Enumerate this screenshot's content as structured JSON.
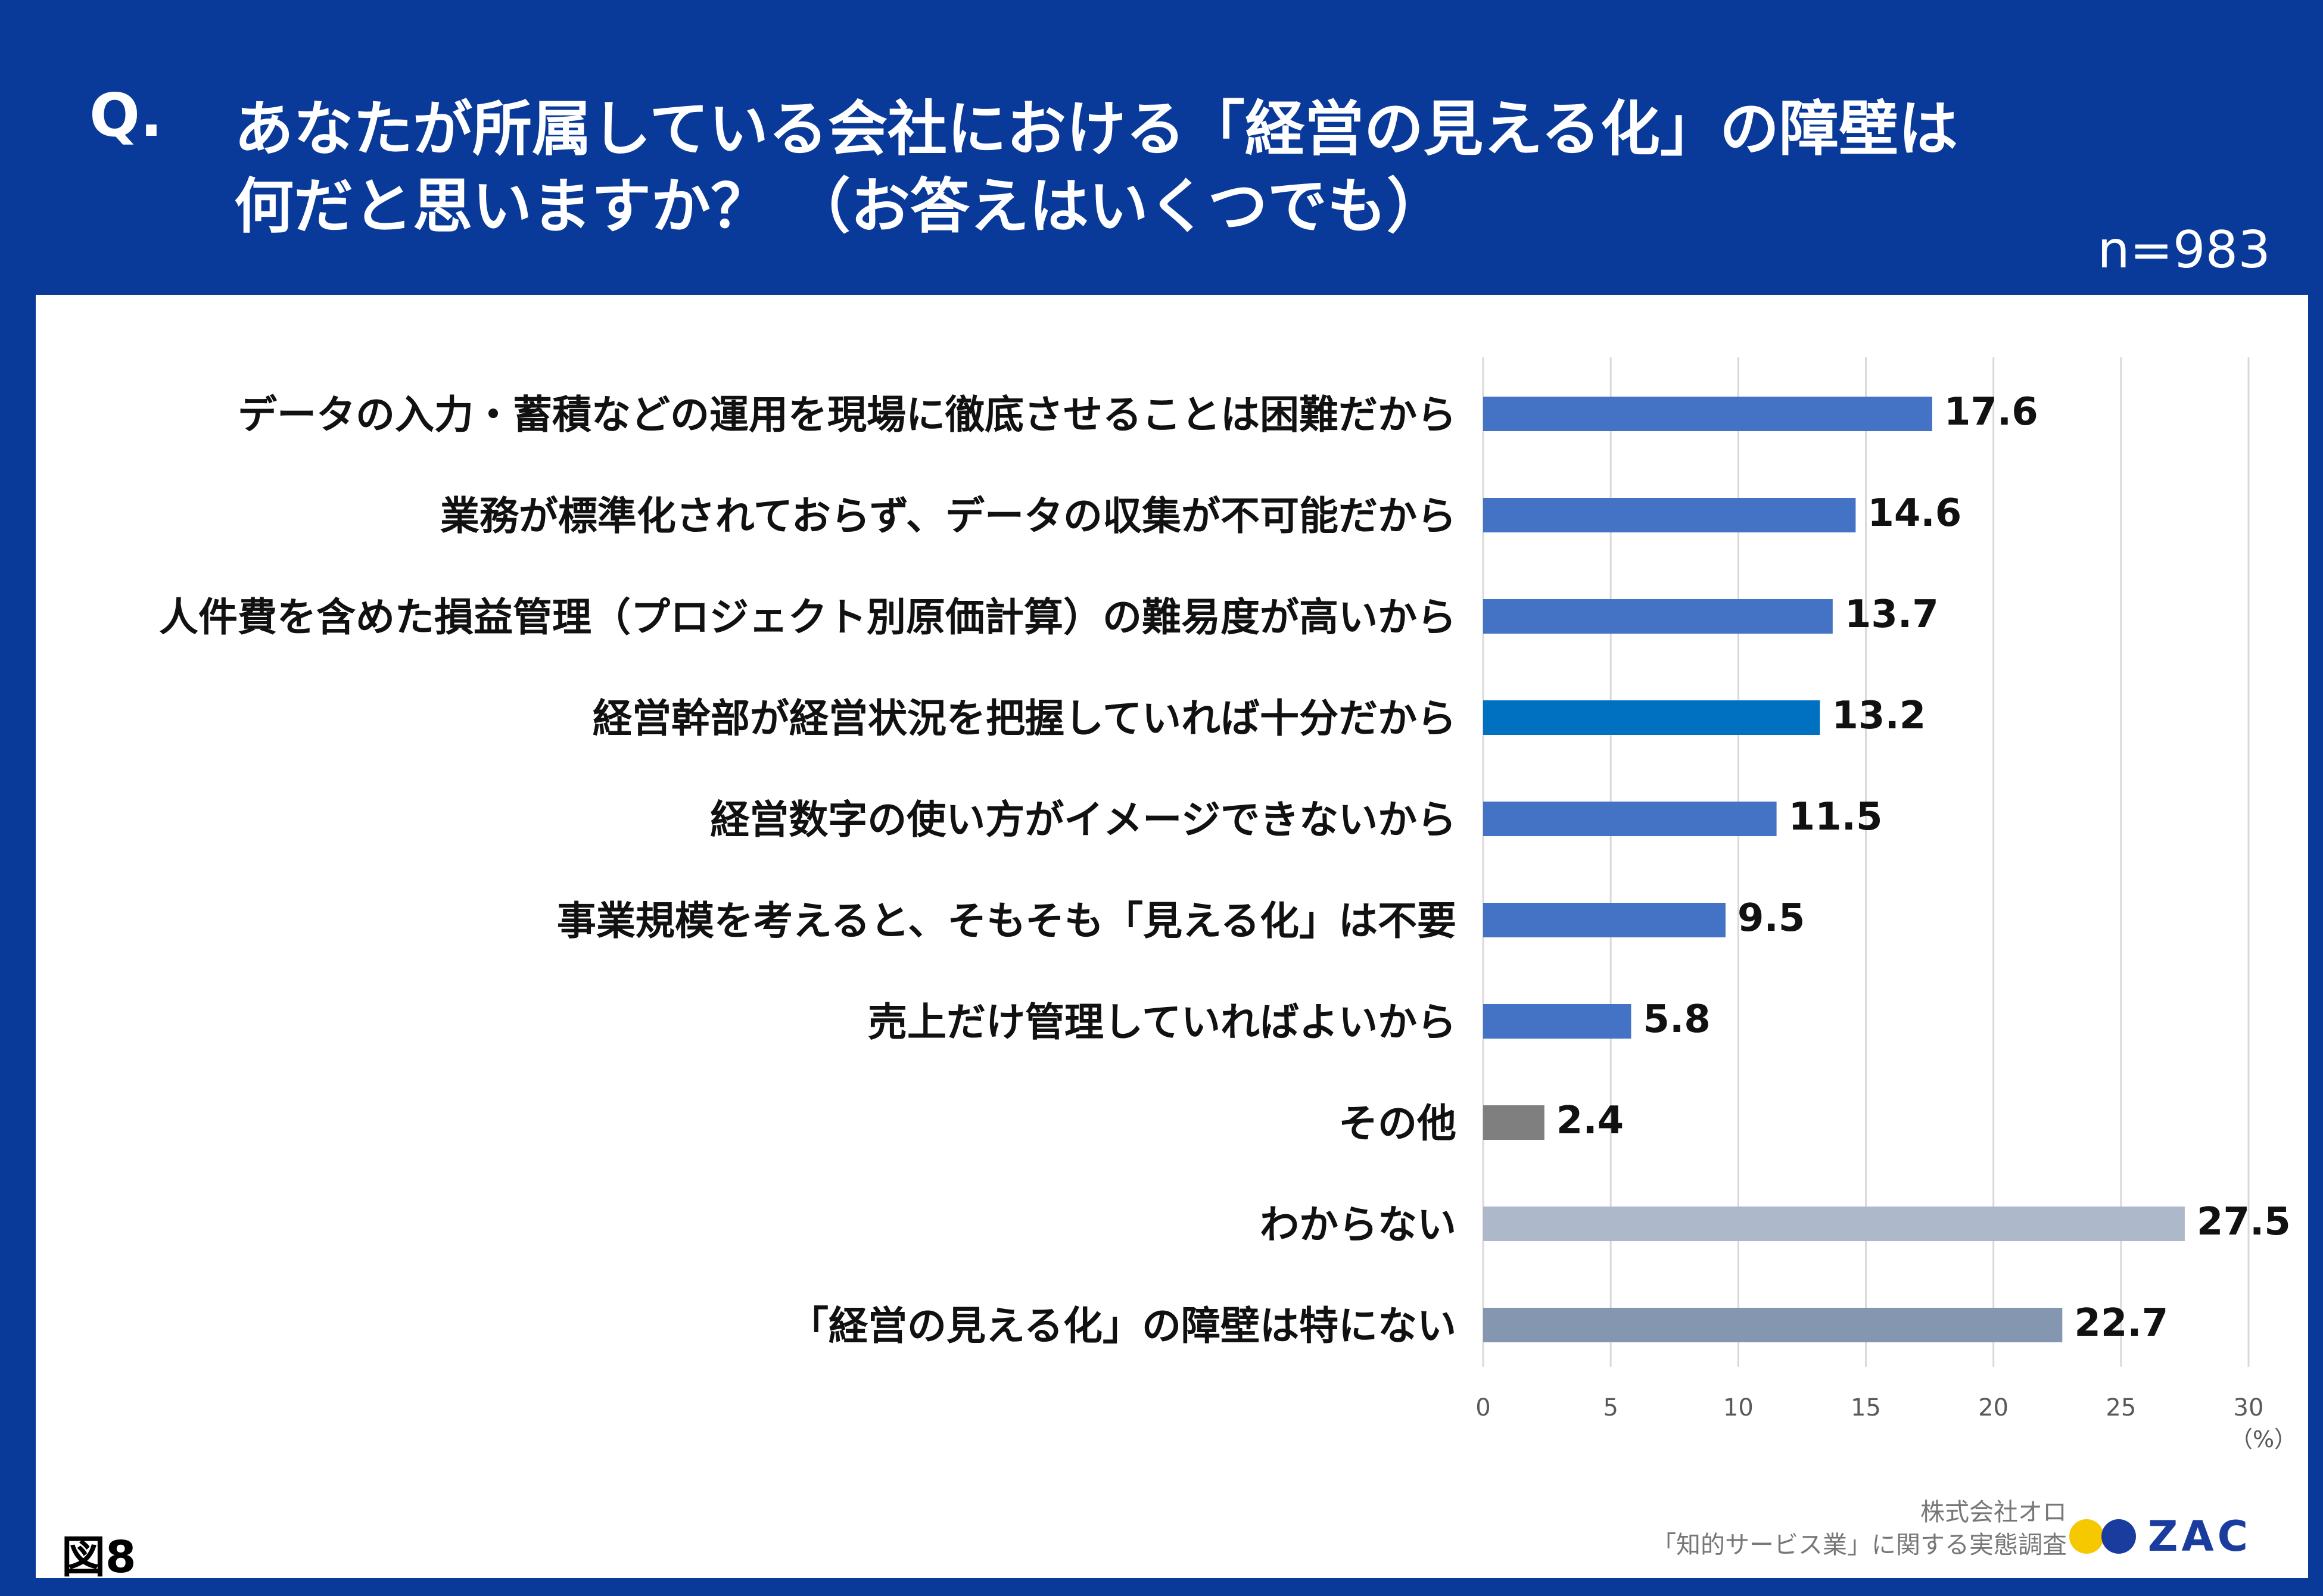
{
  "header": {
    "q_label": "Q.",
    "question_line1": "あなたが所属している会社における「経営の見える化」の障壁は",
    "question_line2": "何だと思いますか？ （お答えはいくつでも）",
    "sample_size": "n=983"
  },
  "chart_data": {
    "type": "bar",
    "orientation": "horizontal",
    "categories": [
      "データの入力・蓄積などの運用を現場に徹底させることは困難だから",
      "業務が標準化されておらず、データの収集が不可能だから",
      "人件費を含めた損益管理（プロジェクト別原価計算）の難易度が高いから",
      "経営幹部が経営状況を把握していれば十分だから",
      "経営数字の使い方がイメージできないから",
      "事業規模を考えると、そもそも「見える化」は不要",
      "売上だけ管理していればよいから",
      "その他",
      "わからない",
      "「経営の見える化」の障壁は特にない"
    ],
    "values": [
      17.6,
      14.6,
      13.7,
      13.2,
      11.5,
      9.5,
      5.8,
      2.4,
      27.5,
      22.7
    ],
    "value_labels": [
      "17.6",
      "14.6",
      "13.7",
      "13.2",
      "11.5",
      "9.5",
      "5.8",
      "2.4",
      "27.5",
      "22.7"
    ],
    "bar_colors": [
      "#4472c4",
      "#4472c4",
      "#4472c4",
      "#0070c0",
      "#4472c4",
      "#4472c4",
      "#4472c4",
      "#7f7f7f",
      "#adb9ca",
      "#8496b0"
    ],
    "xlim": [
      0,
      30
    ],
    "xticks": [
      "0",
      "5",
      "10",
      "15",
      "20",
      "25",
      "30"
    ],
    "xunit": "（%）",
    "grid": true
  },
  "footer": {
    "figure_label": "図8",
    "credit_line1": "株式会社オロ",
    "credit_line2": "「知的サービス業」に関する実態調査",
    "logo_text": "ZAC"
  },
  "colors": {
    "frame": "#0a3a99",
    "panel": "#ffffff",
    "grid": "#d9d9d9",
    "logo_yellow": "#f5c800",
    "logo_blue": "#1a3c9e"
  }
}
